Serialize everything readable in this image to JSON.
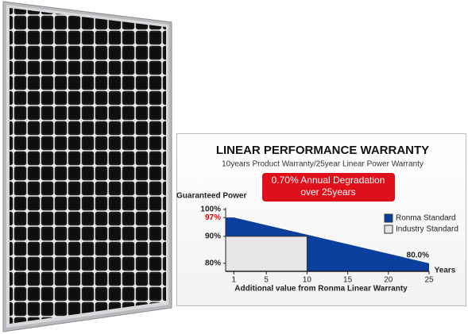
{
  "chart_data": {
    "type": "area",
    "title": "LINEAR PERFORMANCE WARRANTY",
    "subtitle": "10years Product Warranty/25year Linear Power Warranty",
    "annotation": [
      "0.70% Annual Degradation",
      "over 25years"
    ],
    "ylabel": "Guaranteed Power",
    "xlabel": "Additional value from Ronma Linear Warranty",
    "xunit": "Years",
    "xlim": [
      0,
      25
    ],
    "xticks": [
      1,
      5,
      10,
      15,
      20,
      25
    ],
    "ylim": [
      77,
      100
    ],
    "yticks": [
      {
        "value": 100,
        "label": "100%"
      },
      {
        "value": 97,
        "label": "97%"
      },
      {
        "value": 90,
        "label": "90%"
      },
      {
        "value": 80,
        "label": "80%"
      }
    ],
    "legend": "right",
    "series": [
      {
        "name": "Ronma Standard",
        "color": "#0b3f9e",
        "x": [
          0,
          1,
          25
        ],
        "values": [
          97,
          97,
          80
        ],
        "value_labels": [
          null,
          null,
          "80.0%"
        ]
      },
      {
        "name": "Industry Standard",
        "color": "#e6e6e6",
        "x": [
          0,
          10
        ],
        "values": [
          90,
          90
        ]
      }
    ]
  }
}
